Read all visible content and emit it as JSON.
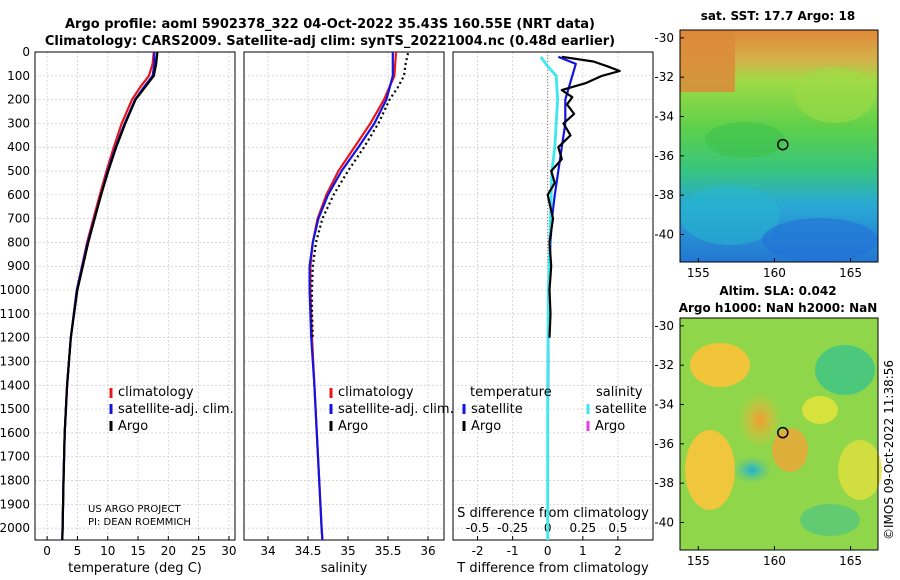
{
  "title": {
    "line1": "Argo profile: aoml 5902378_322 04-Oct-2022 35.43S 160.55E (NRT data)",
    "line2": "Climatology: CARS2009. Satellite-adj clim: synTS_20221004.nc (0.48d earlier)"
  },
  "credit": "©IMOS 09-Oct-2022 11:38:56",
  "project": {
    "line1": "US ARGO PROJECT",
    "line2": "PI: DEAN ROEMMICH"
  },
  "colors": {
    "climatology": "#e8151b",
    "satellite": "#1414e0",
    "argo": "#000000",
    "satellite_salinity": "#3de8ee",
    "argo_salinity": "#e83de3"
  },
  "chart_data": [
    {
      "type": "line",
      "id": "temperature",
      "xlabel": "temperature (deg C)",
      "xlim": [
        -2,
        31
      ],
      "xticks": [
        0,
        5,
        10,
        15,
        20,
        25,
        30
      ],
      "ylim": [
        0,
        2050
      ],
      "yticks": [
        0,
        100,
        200,
        300,
        400,
        500,
        600,
        700,
        800,
        900,
        1000,
        1100,
        1200,
        1300,
        1400,
        1500,
        1600,
        1700,
        1800,
        1900,
        2000
      ],
      "legend": [
        "climatology",
        "satellite-adj. clim.",
        "Argo"
      ],
      "series": [
        {
          "name": "climatology",
          "depth": [
            0,
            50,
            100,
            150,
            200,
            300,
            400,
            500,
            600,
            800,
            1000,
            1200,
            1400,
            1600,
            1800,
            2000,
            2050
          ],
          "values": [
            17.6,
            17.4,
            16.8,
            15.3,
            14.0,
            12.3,
            11.0,
            9.8,
            8.7,
            6.6,
            4.9,
            3.9,
            3.3,
            2.9,
            2.7,
            2.55,
            2.5
          ]
        },
        {
          "name": "satellite-adj. clim.",
          "depth": [
            0,
            50,
            100,
            150,
            200,
            300,
            400,
            500,
            600,
            800,
            1000,
            1200,
            1400,
            1600,
            1800,
            2000,
            2050
          ],
          "values": [
            17.7,
            17.7,
            17.4,
            15.9,
            14.5,
            12.8,
            11.3,
            10.0,
            8.9,
            6.7,
            4.9,
            3.9,
            3.3,
            2.9,
            2.7,
            2.55,
            2.5
          ]
        },
        {
          "name": "Argo",
          "depth": [
            0,
            50,
            100,
            150,
            200,
            300,
            400,
            500,
            600,
            800,
            1000,
            1200,
            1400,
            1600,
            1800,
            2000,
            2050
          ],
          "values": [
            18.2,
            18.0,
            17.6,
            16.1,
            14.6,
            12.9,
            11.4,
            10.1,
            8.9,
            6.8,
            5.0,
            3.9,
            3.3,
            2.9,
            2.7,
            2.55,
            2.5
          ]
        }
      ]
    },
    {
      "type": "line",
      "id": "salinity",
      "xlabel": "salinity",
      "xlim": [
        33.7,
        36.2
      ],
      "xticks": [
        34,
        34.5,
        35,
        35.5,
        36
      ],
      "ylim": [
        0,
        2050
      ],
      "legend": [
        "climatology",
        "satellite-adj. clim.",
        "Argo"
      ],
      "series": [
        {
          "name": "climatology",
          "depth": [
            0,
            100,
            200,
            300,
            400,
            500,
            600,
            700,
            800,
            900,
            1000,
            1200,
            1400,
            1600,
            1800,
            2000,
            2050
          ],
          "values": [
            35.6,
            35.58,
            35.45,
            35.28,
            35.08,
            34.88,
            34.73,
            34.62,
            34.56,
            34.53,
            34.53,
            34.55,
            34.58,
            34.61,
            34.64,
            34.67,
            34.68
          ]
        },
        {
          "name": "satellite-adj. clim.",
          "depth": [
            0,
            100,
            200,
            300,
            400,
            500,
            600,
            700,
            800,
            900,
            1000,
            1200,
            1400,
            1600,
            1800,
            2000,
            2050
          ],
          "values": [
            35.56,
            35.56,
            35.48,
            35.33,
            35.13,
            34.92,
            34.75,
            34.63,
            34.56,
            34.52,
            34.52,
            34.54,
            34.58,
            34.61,
            34.64,
            34.67,
            34.68
          ]
        },
        {
          "name": "Argo",
          "depth": [
            5,
            50,
            100,
            150,
            200,
            300,
            400,
            500,
            600,
            700,
            800,
            900,
            1000,
            1100,
            1200
          ],
          "values": [
            35.75,
            35.72,
            35.7,
            35.62,
            35.52,
            35.38,
            35.2,
            35.0,
            34.82,
            34.68,
            34.6,
            34.56,
            34.55,
            34.55,
            34.56
          ]
        }
      ]
    },
    {
      "type": "line",
      "id": "differences",
      "xlabel": "T difference from climatology",
      "xlabel_top": "S difference from climatology",
      "xlim": [
        -2.7,
        3
      ],
      "xticks": [
        -2,
        -1,
        0,
        1,
        2
      ],
      "xticks_top": [
        "-0.5",
        "-0.25",
        "0",
        "0.25",
        "0.5"
      ],
      "xticks_top_values": [
        -0.5,
        -0.25,
        0,
        0.25,
        0.5
      ],
      "ylim": [
        0,
        2050
      ],
      "legend_temperature_title": "temperature",
      "legend_salinity_title": "salinity",
      "legend_temperature": [
        "satellite",
        "Argo"
      ],
      "legend_salinity": [
        "satellite",
        "Argo"
      ],
      "series": [
        {
          "name": "temperature satellite",
          "depth": [
            20,
            50,
            100,
            150,
            200,
            300,
            400,
            500,
            600,
            700,
            800,
            900,
            1000,
            1200,
            1400,
            1600,
            1800,
            2000,
            2050
          ],
          "values": [
            0.3,
            0.8,
            0.7,
            0.6,
            0.5,
            0.5,
            0.4,
            0.3,
            0.2,
            0.12,
            0.08,
            0.05,
            0.03,
            0.02,
            0.01,
            0.0,
            0.0,
            0.0,
            0.0
          ]
        },
        {
          "name": "temperature Argo",
          "depth": [
            20,
            40,
            60,
            80,
            100,
            130,
            160,
            190,
            220,
            260,
            300,
            350,
            400,
            450,
            500,
            550,
            600,
            700,
            800,
            900,
            1000,
            1100,
            1200
          ],
          "values": [
            0.4,
            1.3,
            1.7,
            2.05,
            1.55,
            1.1,
            0.4,
            0.7,
            0.55,
            0.75,
            0.45,
            0.65,
            0.3,
            0.4,
            0.1,
            0.2,
            0.0,
            0.15,
            0.05,
            0.1,
            0.05,
            0.08,
            0.05
          ]
        },
        {
          "name": "salinity satellite",
          "depth": [
            20,
            60,
            100,
            200,
            300,
            400,
            500,
            700,
            1000,
            1400,
            1800,
            2050
          ],
          "values": [
            -0.05,
            0.0,
            0.06,
            0.07,
            0.06,
            0.05,
            0.03,
            0.02,
            0.005,
            0.0,
            0.0,
            0.0
          ]
        },
        {
          "name": "salinity Argo",
          "depth": [],
          "values": []
        }
      ]
    },
    {
      "type": "heatmap",
      "id": "sst_map",
      "title": "sat. SST: 17.7 Argo: 18",
      "xticks": [
        155,
        160,
        165
      ],
      "yticks": [
        -30,
        -32,
        -34,
        -36,
        -38,
        -40
      ],
      "xlim": [
        153.8,
        166.8
      ],
      "ylim": [
        -41.4,
        -29.6
      ],
      "marker": {
        "lon": 160.55,
        "lat": -35.43
      }
    },
    {
      "type": "heatmap",
      "id": "sla_map",
      "title_line1": "Altim. SLA: 0.042",
      "title_line2": "Argo h1000: NaN h2000: NaN",
      "xticks": [
        155,
        160,
        165
      ],
      "yticks": [
        -30,
        -32,
        -34,
        -36,
        -38,
        -40
      ],
      "xlim": [
        153.8,
        166.8
      ],
      "ylim": [
        -41.4,
        -29.6
      ],
      "marker": {
        "lon": 160.55,
        "lat": -35.43
      }
    }
  ]
}
